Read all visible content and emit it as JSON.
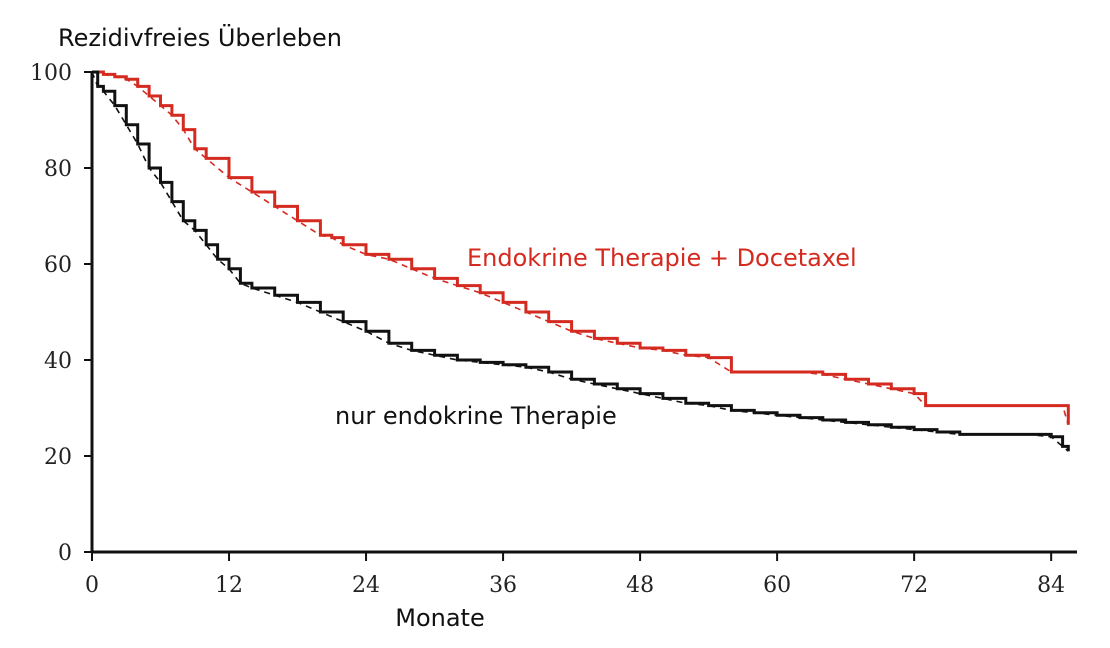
{
  "chart_data": {
    "type": "line",
    "title": "",
    "ylabel": "Rezidivfreies Überleben",
    "xlabel": "Monate",
    "xlim": [
      0,
      86
    ],
    "ylim": [
      0,
      100
    ],
    "xticks": [
      0,
      12,
      24,
      36,
      48,
      60,
      72,
      84
    ],
    "yticks": [
      0,
      20,
      40,
      60,
      80,
      100
    ],
    "xtick_labels": [
      "0",
      "12",
      "24",
      "36",
      "48",
      "60",
      "72",
      "84"
    ],
    "ytick_labels": [
      "0",
      "20",
      "40",
      "60",
      "80",
      "100"
    ],
    "grid": false,
    "series": [
      {
        "name": "Endokrine Therapie + Docetaxel",
        "color": "#d42a20",
        "step": true,
        "dashed_fit": true,
        "x": [
          0,
          1,
          2,
          3,
          4,
          5,
          6,
          7,
          8,
          9,
          10,
          12,
          14,
          16,
          18,
          20,
          21,
          22,
          24,
          26,
          28,
          30,
          32,
          34,
          36,
          38,
          40,
          42,
          44,
          46,
          48,
          50,
          52,
          54,
          56,
          58,
          60,
          62,
          64,
          66,
          68,
          70,
          72,
          73,
          74,
          76,
          78,
          80,
          82,
          84,
          85,
          85.5
        ],
        "y": [
          100,
          99.5,
          99,
          98.5,
          97,
          95,
          93,
          91,
          88,
          84,
          82,
          78,
          75,
          72,
          69,
          66,
          65.5,
          64,
          62,
          61,
          59,
          57,
          55.5,
          54,
          52,
          50,
          48,
          46,
          44.5,
          43.5,
          42.5,
          42,
          41,
          40.5,
          37.5,
          37.5,
          37.5,
          37.5,
          37,
          36,
          35,
          34,
          33,
          30.5,
          30.5,
          30.5,
          30.5,
          30.5,
          30.5,
          30.5,
          30.5,
          26.5
        ]
      },
      {
        "name": "nur endokrine Therapie",
        "color": "#111111",
        "step": true,
        "dashed_fit": true,
        "x": [
          0,
          0.5,
          1,
          2,
          3,
          4,
          5,
          6,
          7,
          8,
          9,
          10,
          11,
          12,
          13,
          14,
          16,
          18,
          20,
          22,
          24,
          26,
          28,
          30,
          32,
          34,
          36,
          38,
          40,
          42,
          44,
          46,
          48,
          50,
          52,
          54,
          56,
          58,
          60,
          62,
          64,
          66,
          68,
          70,
          72,
          74,
          76,
          78,
          80,
          82,
          84,
          85,
          85.5
        ],
        "y": [
          100,
          97,
          96,
          93,
          89,
          85,
          80,
          77,
          73,
          69,
          67,
          64,
          61,
          59,
          56,
          55,
          53.5,
          52,
          50,
          48,
          46,
          43.5,
          42,
          41,
          40,
          39.5,
          39,
          38.5,
          37.5,
          36,
          35,
          34,
          33,
          32,
          31,
          30.5,
          29.5,
          29,
          28.5,
          28,
          27.5,
          27,
          26.5,
          26,
          25.5,
          25,
          24.5,
          24.5,
          24.5,
          24.5,
          24,
          22,
          21
        ]
      }
    ]
  }
}
